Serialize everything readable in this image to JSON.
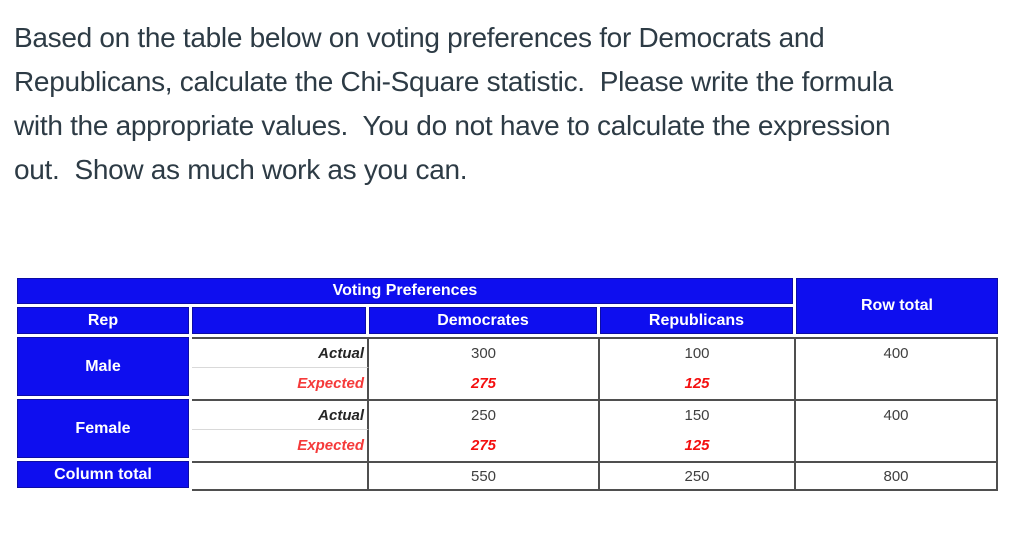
{
  "question": {
    "lines": [
      "Based on the table below on voting preferences for Democrats and",
      "Republicans, calculate the Chi-Square statistic.  Please write the formula",
      "with the appropriate values.  You do not have to calculate the expression",
      "out.  Show as much work as you can."
    ]
  },
  "table": {
    "title": "Voting Preferences",
    "row_total_header": "Row total",
    "rep_header": "Rep",
    "column_headers": {
      "democrats": "Democrates",
      "republicans": "Republicans"
    },
    "row_headers": {
      "male": "Male",
      "female": "Female",
      "column_total": "Column total"
    },
    "measure_labels": {
      "actual": "Actual",
      "expected": "Expected"
    },
    "data": {
      "male": {
        "actual": {
          "democrats": "300",
          "republicans": "100"
        },
        "expected": {
          "democrats": "275",
          "republicans": "125"
        },
        "row_total": "400"
      },
      "female": {
        "actual": {
          "democrats": "250",
          "republicans": "150"
        },
        "expected": {
          "democrats": "275",
          "republicans": "125"
        },
        "row_total": "400"
      },
      "column_total": {
        "democrats": "550",
        "republicans": "250",
        "grand_total": "800"
      }
    },
    "colors": {
      "header_blue": "#0E0EEF",
      "expected_red": "#F40F0F",
      "value_gray": "#3F3F3F",
      "question_text": "#2D3B45",
      "grid_border": "#4F4F4F"
    }
  }
}
